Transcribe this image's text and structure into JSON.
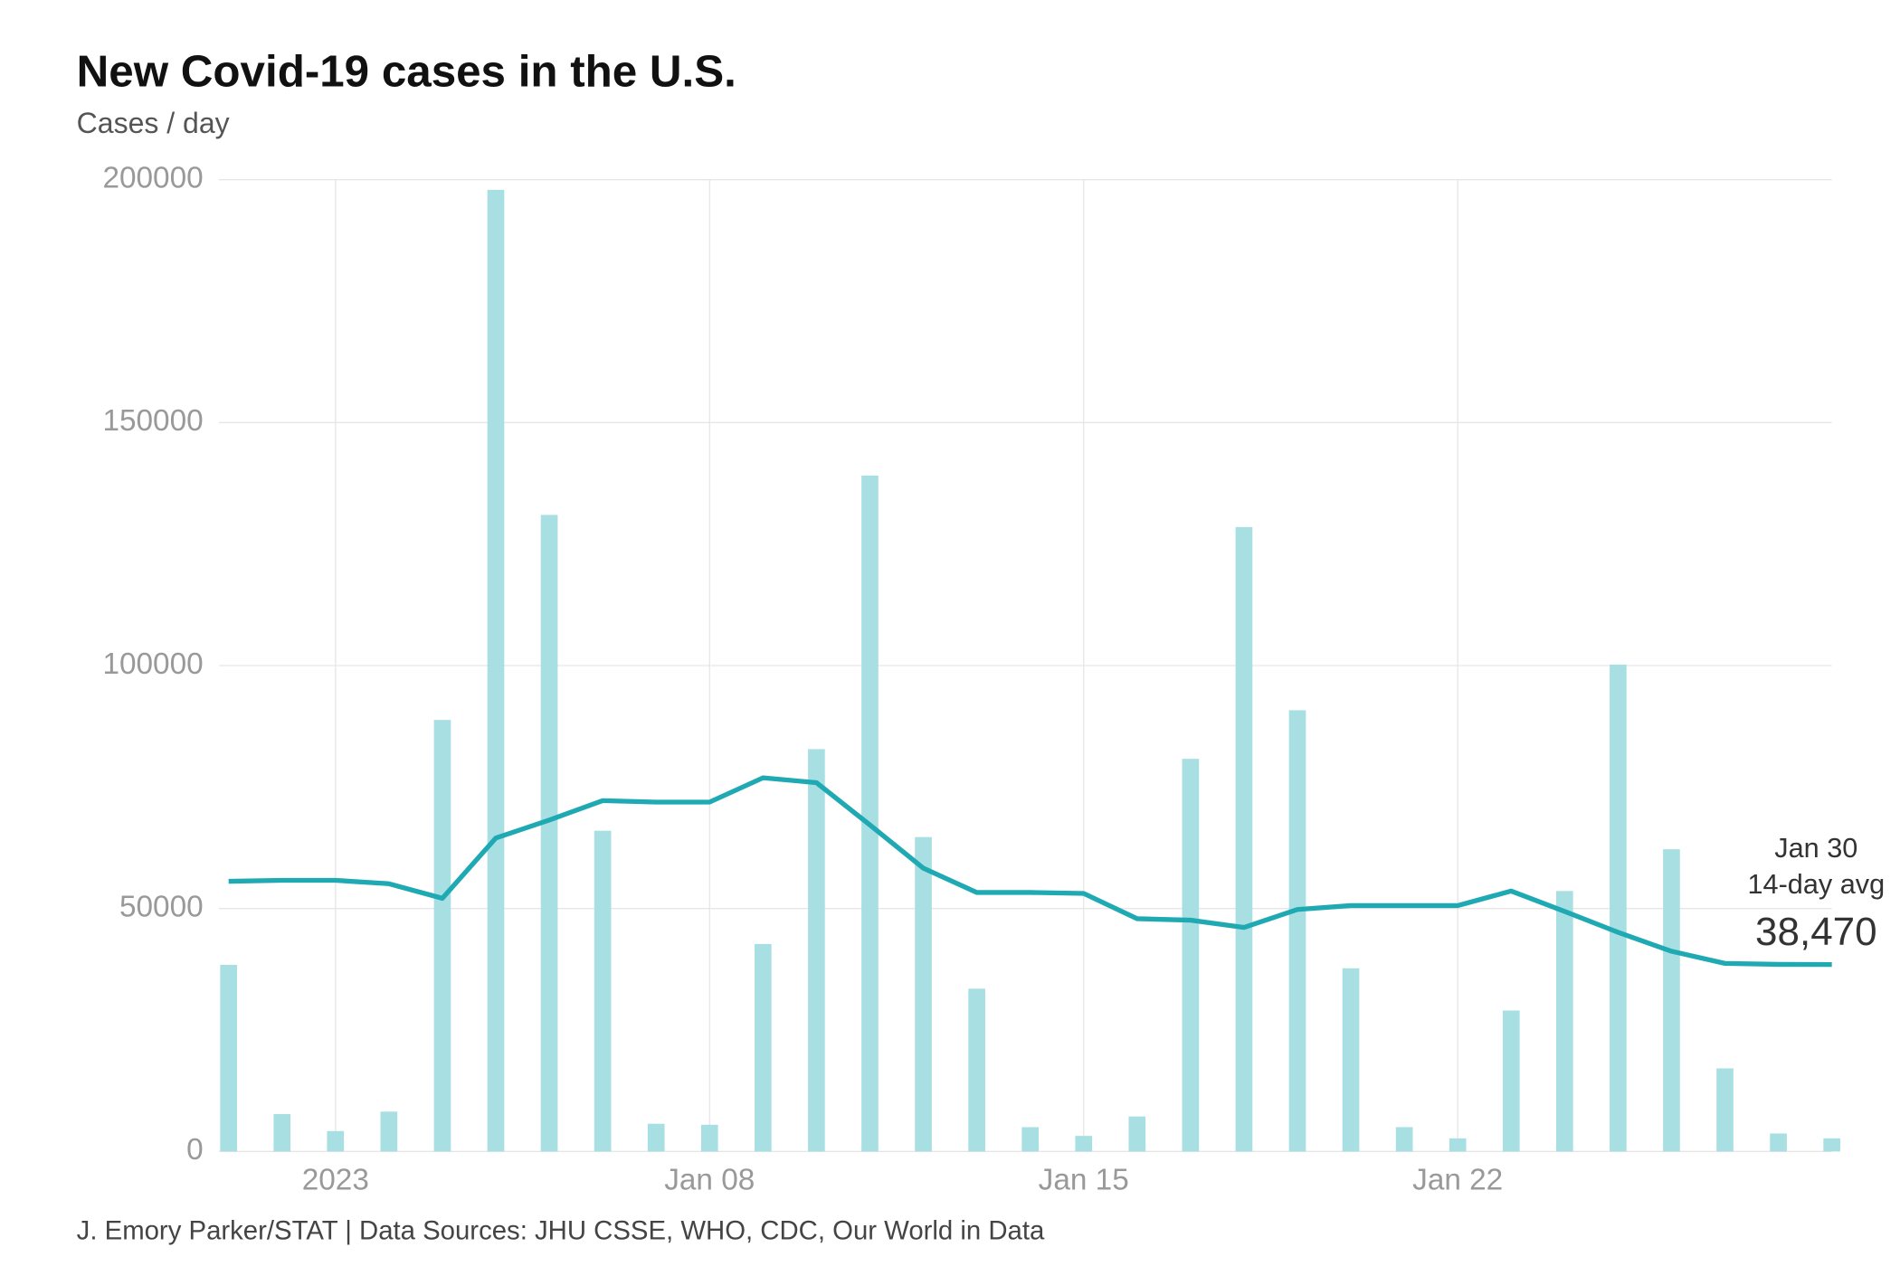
{
  "chart_data": {
    "type": "bar",
    "title": "New Covid-19 cases in the U.S.",
    "subtitle": "Cases / day",
    "source": "J. Emory Parker/STAT | Data Sources: JHU CSSE, WHO, CDC, Our World in Data",
    "categories": [
      null,
      null,
      "2023",
      null,
      null,
      null,
      null,
      null,
      null,
      "Jan 08",
      null,
      null,
      null,
      null,
      null,
      null,
      "Jan 15",
      null,
      null,
      null,
      null,
      null,
      null,
      "Jan 22",
      null,
      null,
      null,
      null,
      null,
      null,
      null
    ],
    "series": [
      {
        "type": "bar",
        "color": "#a8dfe3",
        "values": [
          38400,
          7700,
          4200,
          8200,
          88800,
          197900,
          131000,
          66000,
          5700,
          5500,
          42700,
          82800,
          139100,
          64700,
          33500,
          5000,
          3200,
          7200,
          80800,
          128500,
          90800,
          37700,
          5000,
          2700,
          29000,
          53600,
          100200,
          62200,
          17100,
          3700,
          2700
        ]
      },
      {
        "type": "line",
        "color": "#1fa9b3",
        "values": [
          55600,
          55800,
          55800,
          55100,
          52100,
          64500,
          68200,
          72200,
          71900,
          71900,
          76900,
          75900,
          67200,
          58300,
          53300,
          53300,
          53100,
          47900,
          47600,
          46100,
          49800,
          50600,
          50600,
          50600,
          53600,
          49400,
          45100,
          41200,
          38700,
          38500,
          38470
        ]
      }
    ],
    "annotation": {
      "date": "Jan 30",
      "label": "14-day avg",
      "value_label": "38,470"
    },
    "ylim": [
      0,
      200000
    ],
    "yticks": [
      0,
      50000,
      100000,
      150000,
      200000
    ],
    "grid": true
  }
}
